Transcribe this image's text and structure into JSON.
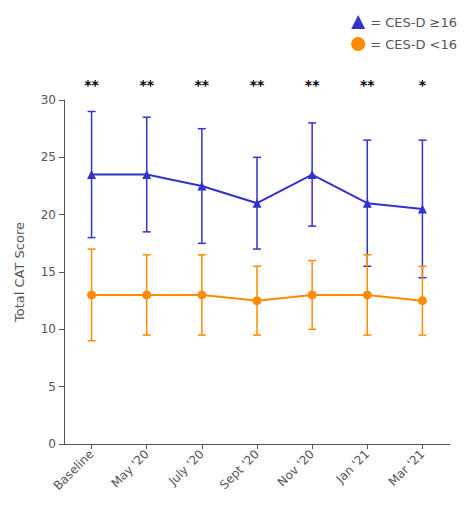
{
  "chart_data": {
    "type": "line",
    "categories": [
      "Baseline",
      "May '20",
      "July '20",
      "Sept '20",
      "Nov '20",
      "Jan '21",
      "Mar '21"
    ],
    "series": [
      {
        "name": "= CES-D ≥16",
        "color": "#3333CC",
        "marker": "triangle",
        "values": [
          23.5,
          23.5,
          22.5,
          21.0,
          23.5,
          21.0,
          20.5
        ],
        "error_lower": [
          5.5,
          5.0,
          5.0,
          4.0,
          4.5,
          5.5,
          6.0
        ],
        "error_upper": [
          5.5,
          5.0,
          5.0,
          4.0,
          4.5,
          5.5,
          6.0
        ]
      },
      {
        "name": "= CES-D <16",
        "color": "#FF8C00",
        "marker": "circle",
        "values": [
          13.0,
          13.0,
          13.0,
          12.5,
          13.0,
          13.0,
          12.5
        ],
        "error_lower": [
          4.0,
          3.5,
          3.5,
          3.0,
          3.0,
          3.5,
          3.0
        ],
        "error_upper": [
          4.0,
          3.5,
          3.5,
          3.0,
          3.0,
          3.5,
          3.0
        ]
      }
    ],
    "annotations": [
      "**",
      "**",
      "**",
      "**",
      "**",
      "**",
      "*"
    ],
    "ylabel": "Total CAT Score",
    "ylim": [
      0,
      30
    ],
    "yticks": [
      0,
      5,
      10,
      15,
      20,
      25,
      30
    ],
    "grid": false,
    "legend": "upper right"
  }
}
